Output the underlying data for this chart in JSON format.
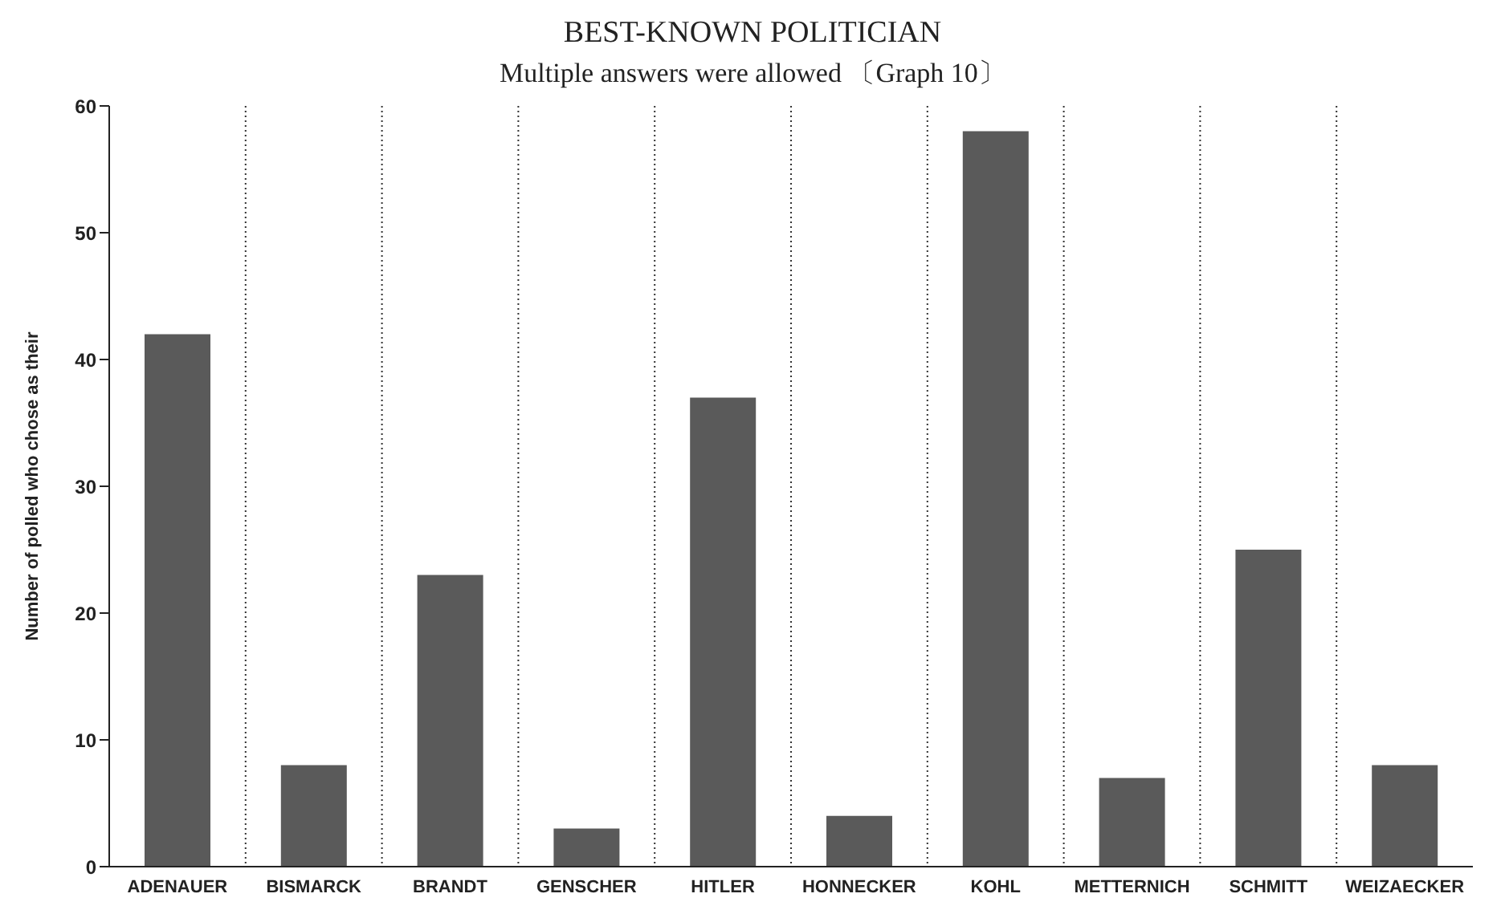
{
  "chart_data": {
    "type": "bar",
    "title": "BEST-KNOWN POLITICIAN",
    "subtitle": "Multiple answers were allowed 〔Graph 10〕",
    "ylabel": "Number of polled who chose as their",
    "categories": [
      "ADENAUER",
      "BISMARCK",
      "BRANDT",
      "GENSCHER",
      "HITLER",
      "HONNECKER",
      "KOHL",
      "METTERNICH",
      "SCHMITT",
      "WEIZAECKER"
    ],
    "values": [
      42,
      8,
      23,
      3,
      37,
      4,
      58,
      7,
      25,
      8
    ],
    "color": "#5a5a5a",
    "ylim": [
      0,
      60
    ],
    "yticks": [
      0,
      10,
      20,
      30,
      40,
      50,
      60
    ],
    "grid": "x",
    "legend": false
  }
}
